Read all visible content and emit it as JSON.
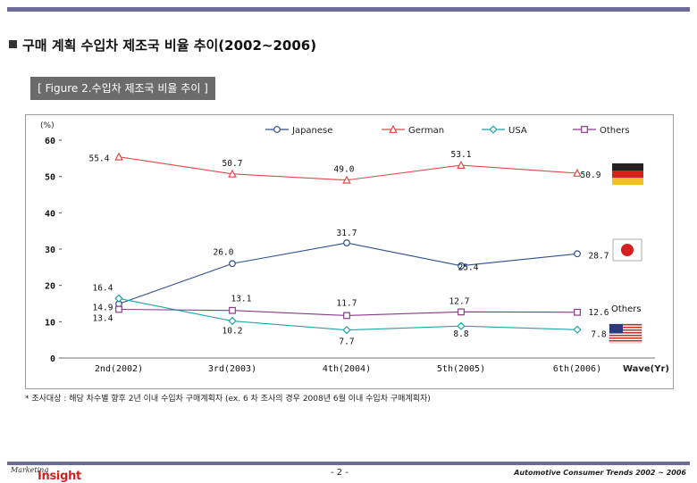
{
  "header": {
    "title": "구매 계획 수입차 제조국 비율 추이(2002~2006)",
    "figure_label": "[ Figure 2.수입차 제조국 비율 추이 ]"
  },
  "chart_data": {
    "type": "line",
    "unit_label": "(%)",
    "categories": [
      "2nd(2002)",
      "3rd(2003)",
      "4th(2004)",
      "5th(2005)",
      "6th(2006)"
    ],
    "x_axis_title": "Wave(Yr)",
    "ylim": [
      0,
      60
    ],
    "yticks": [
      0,
      10,
      20,
      30,
      40,
      50,
      60
    ],
    "series": [
      {
        "name": "Japanese",
        "values": [
          14.9,
          26.0,
          31.7,
          25.4,
          28.7
        ],
        "labels": [
          "14.9",
          "26.0",
          "31.7",
          "25.4",
          "28.7"
        ],
        "color": "#2e4e8e",
        "marker": "circle"
      },
      {
        "name": "German",
        "values": [
          55.4,
          50.7,
          49.0,
          53.1,
          50.9
        ],
        "labels": [
          "55.4",
          "50.7",
          "49.0",
          "53.1",
          "50.9"
        ],
        "color": "#e04a4a",
        "marker": "triangle"
      },
      {
        "name": "USA",
        "values": [
          16.4,
          10.2,
          7.7,
          8.8,
          7.8
        ],
        "labels": [
          "16.4",
          "10.2",
          "7.7",
          "8.8",
          "7.8"
        ],
        "color": "#1fa3a8",
        "marker": "diamond"
      },
      {
        "name": "Others",
        "values": [
          13.4,
          13.1,
          11.7,
          12.7,
          12.6
        ],
        "labels": [
          "13.4",
          "13.1",
          "11.7",
          "12.7",
          "12.6"
        ],
        "color": "#8a3a8a",
        "marker": "square"
      }
    ],
    "annotations": {
      "others_tag": "Others"
    }
  },
  "footnote": "* 조사대상 : 해당 차수별 향후 2년 이내 수입차 구매계획자 (ex. 6 차 조사의 경우 2008년 6월 이내 수입차 구매계획자)",
  "footer": {
    "logo_top": "Marketing",
    "logo_main": "Insight",
    "page": "- 2 -",
    "right_text": "Automotive Consumer Trends 2002 ~ 2006"
  }
}
